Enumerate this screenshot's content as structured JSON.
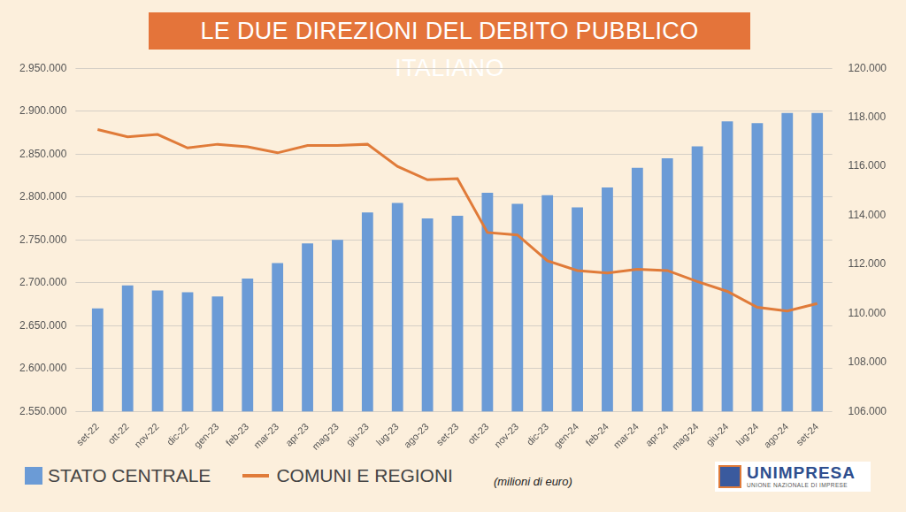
{
  "chart_data": {
    "type": "bar",
    "title": "LE DUE DIREZIONI DEL DEBITO PUBBLICO ITALIANO",
    "categories": [
      "set-22",
      "ott-22",
      "nov-22",
      "dic-22",
      "gen-23",
      "feb-23",
      "mar-23",
      "apr-23",
      "mag-23",
      "giu-23",
      "lug-23",
      "ago-23",
      "set-23",
      "ott-23",
      "nov-23",
      "dic-23",
      "gen-24",
      "feb-24",
      "mar-24",
      "apr-24",
      "mag-24",
      "giu-24",
      "lug-24",
      "ago-24",
      "set-24"
    ],
    "series": [
      {
        "name": "STATO CENTRALE",
        "type": "bar",
        "color": "#6b9bd6",
        "values": [
          2670000,
          2697000,
          2691000,
          2689000,
          2684000,
          2705000,
          2723000,
          2746000,
          2750000,
          2782000,
          2793000,
          2775000,
          2778000,
          2805000,
          2792000,
          2802000,
          2788000,
          2811000,
          2834000,
          2845000,
          2859000,
          2888000,
          2886000,
          2898000,
          2898000
        ]
      },
      {
        "name": "COMUNI E REGIONI",
        "type": "line",
        "axis": "y2",
        "color": "#e07b39",
        "marker": "none",
        "line_style": "solid",
        "values": [
          117500,
          117200,
          117300,
          116750,
          116900,
          116800,
          116550,
          116850,
          116850,
          116900,
          116000,
          115450,
          115500,
          113300,
          113200,
          112150,
          111750,
          111650,
          111800,
          111750,
          111300,
          110900,
          110250,
          110100,
          110400
        ]
      }
    ],
    "ylim": [
      2550000,
      2950000
    ],
    "yticks": [
      {
        "value": 2550000,
        "label": "2.550.000"
      },
      {
        "value": 2600000,
        "label": "2.600.000"
      },
      {
        "value": 2650000,
        "label": "2.650.000"
      },
      {
        "value": 2700000,
        "label": "2.700.000"
      },
      {
        "value": 2750000,
        "label": "2.750.000"
      },
      {
        "value": 2800000,
        "label": "2.800.000"
      },
      {
        "value": 2850000,
        "label": "2.850.000"
      },
      {
        "value": 2900000,
        "label": "2.900.000"
      },
      {
        "value": 2950000,
        "label": "2.950.000"
      }
    ],
    "y2lim": [
      106000,
      120000
    ],
    "y2ticks": [
      {
        "value": 106000,
        "label": "106.000"
      },
      {
        "value": 108000,
        "label": "108.000"
      },
      {
        "value": 110000,
        "label": "110.000"
      },
      {
        "value": 112000,
        "label": "112.000"
      },
      {
        "value": 114000,
        "label": "114.000"
      },
      {
        "value": 116000,
        "label": "116.000"
      },
      {
        "value": 118000,
        "label": "118.000"
      },
      {
        "value": 120000,
        "label": "120.000"
      }
    ],
    "grid": true,
    "legend": "bottom",
    "annotations": [
      "(milioni di euro)",
      "UNIMPRESA",
      "UNIONE NAZIONALE DI IMPRESE"
    ]
  }
}
